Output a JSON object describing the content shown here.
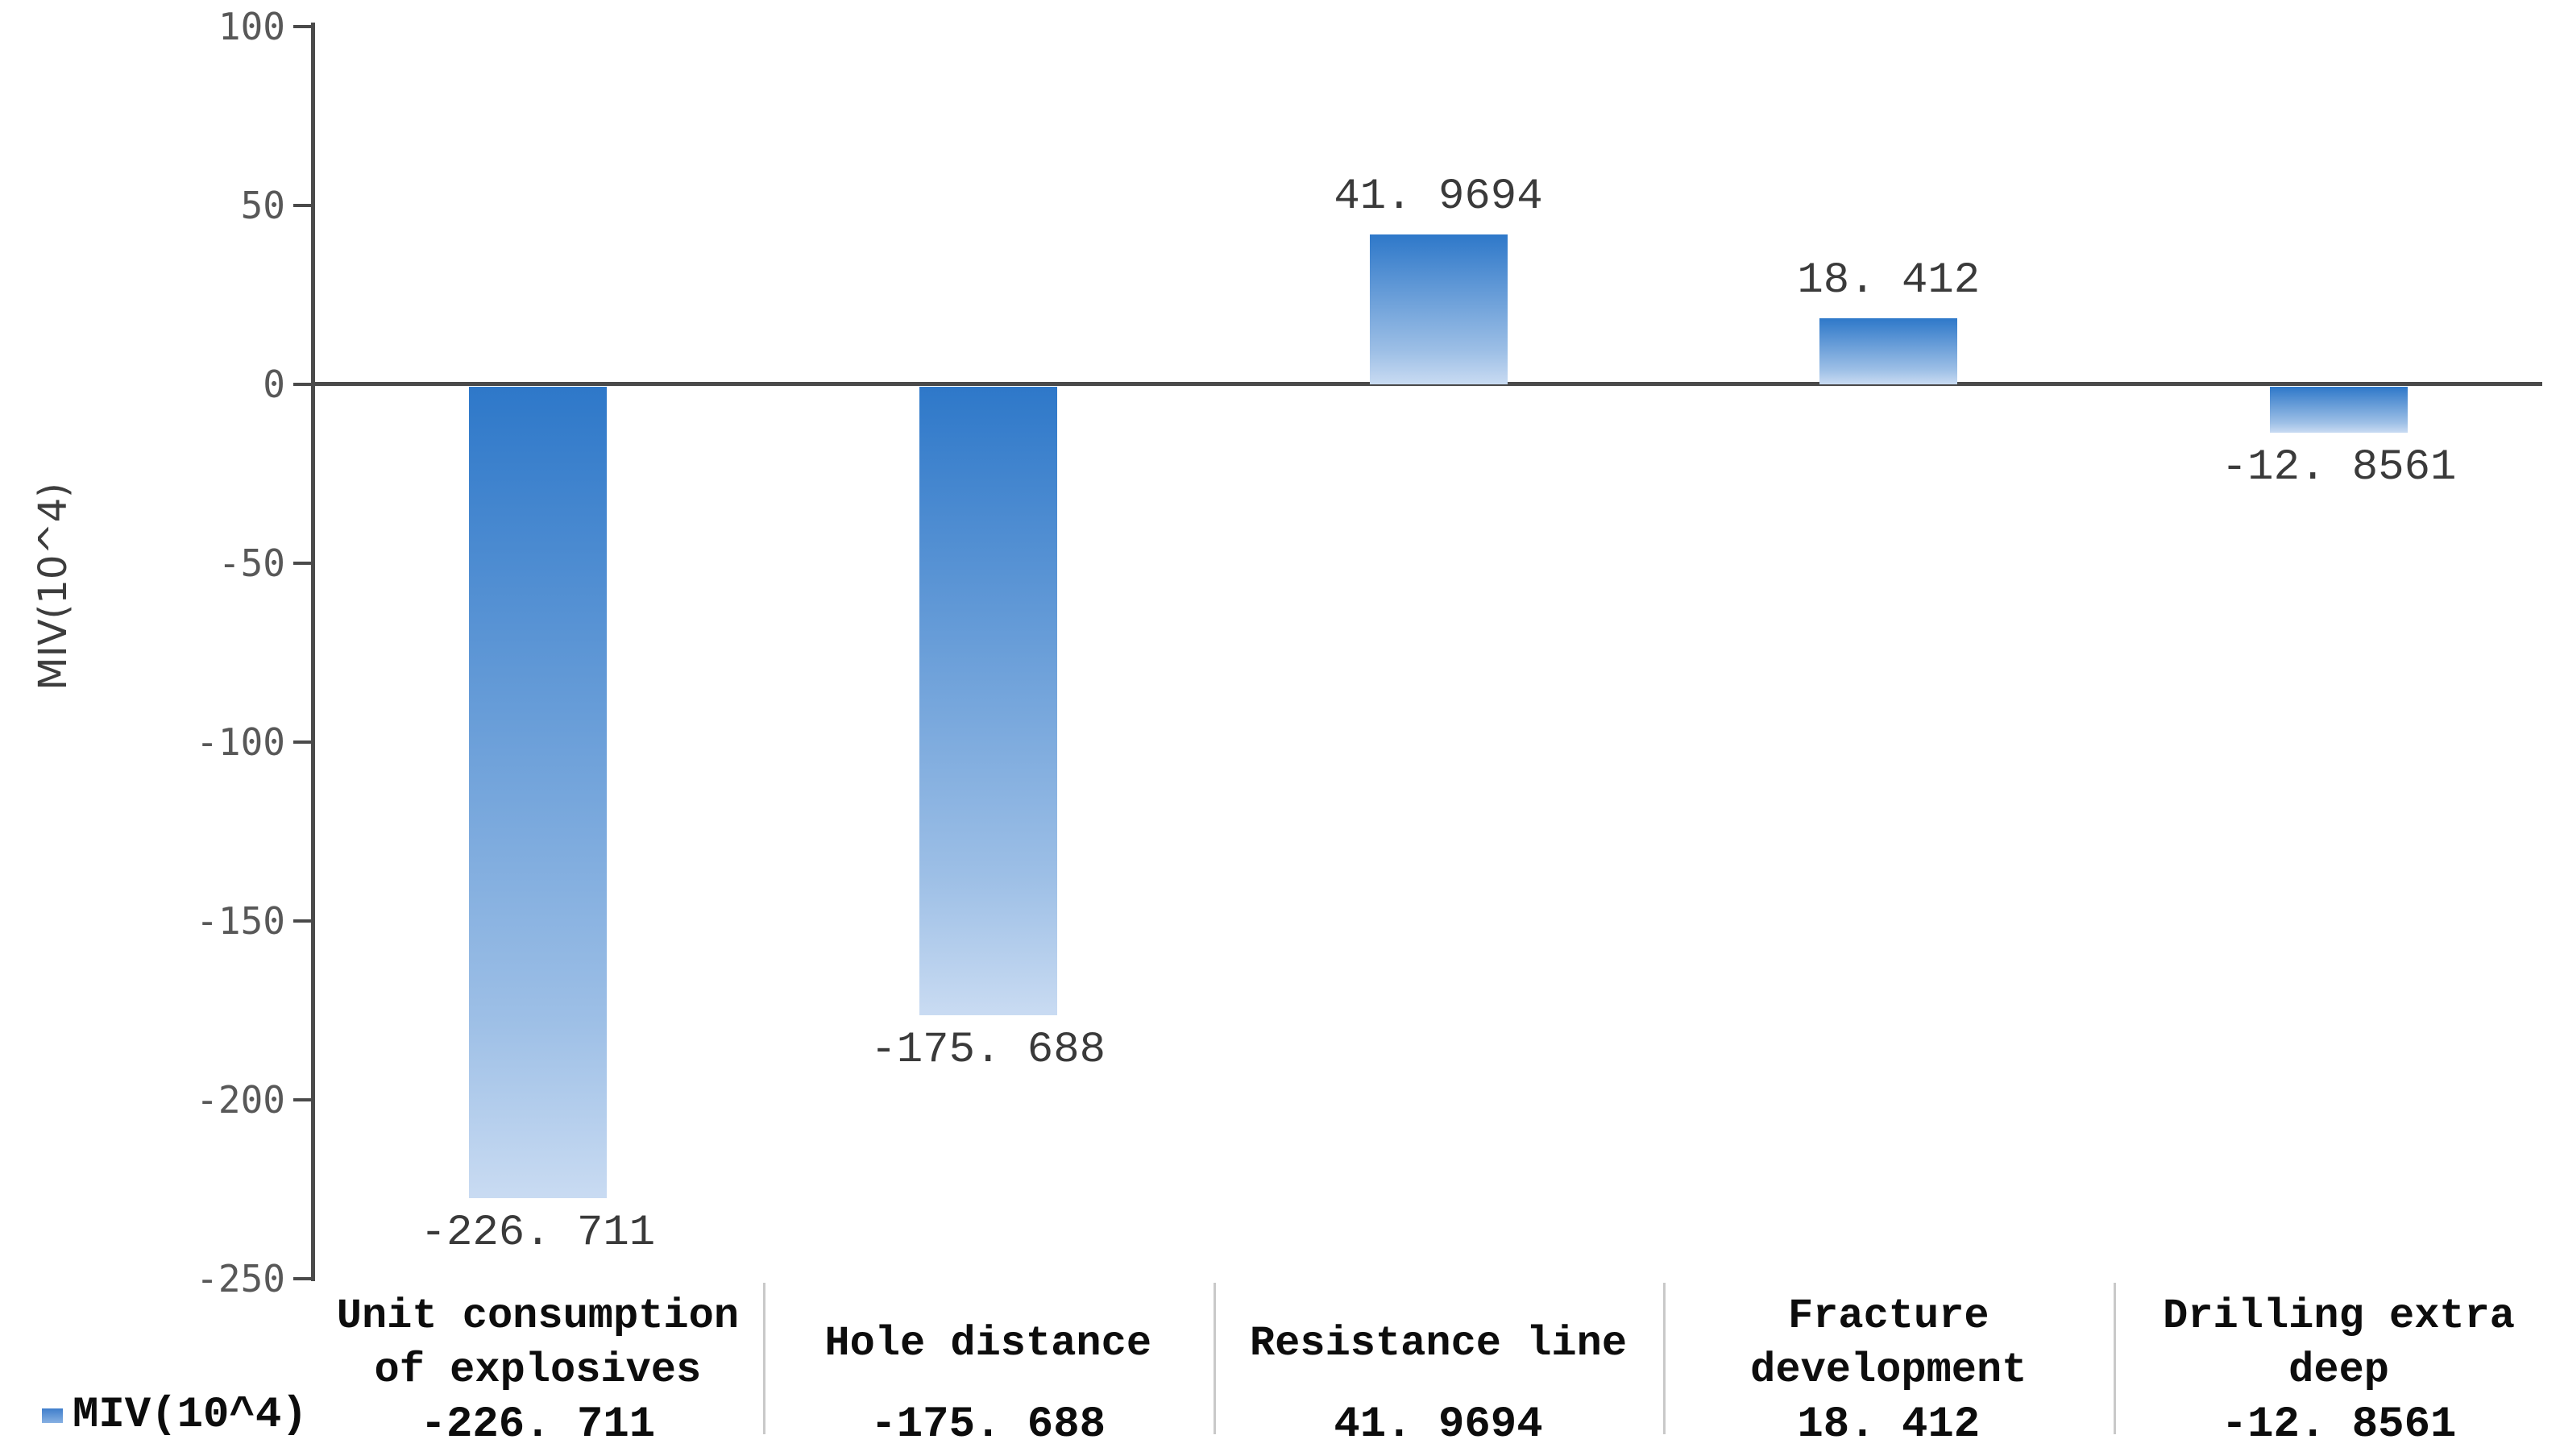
{
  "chart_data": {
    "type": "bar",
    "title": "",
    "xlabel": "",
    "ylabel": "MIV(10^4)",
    "series_name": "MIV(10^4)",
    "ylim": [
      -250,
      100
    ],
    "ytick_step": 50,
    "yticks": [
      "100",
      "50",
      "0",
      "-50",
      "-100",
      "-150",
      "-200",
      "-250"
    ],
    "grid": false,
    "legend_position": "bottom-left",
    "bar_color_top": "#2e78c9",
    "bar_color_bottom": "#c9dbf2",
    "categories": [
      {
        "name": "Unit consumption of explosives",
        "name_lines": [
          "Unit consumption",
          "of explosives"
        ],
        "value": -226.711,
        "label": "-226. 711"
      },
      {
        "name": "Hole distance",
        "name_lines": [
          "Hole distance"
        ],
        "value": -175.688,
        "label": "-175. 688"
      },
      {
        "name": "Resistance line",
        "name_lines": [
          "Resistance line"
        ],
        "value": 41.9694,
        "label": "41. 9694"
      },
      {
        "name": "Fracture development",
        "name_lines": [
          "Fracture",
          "development"
        ],
        "value": 18.412,
        "label": "18. 412"
      },
      {
        "name": "Drilling extra deep",
        "name_lines": [
          "Drilling extra",
          "deep"
        ],
        "value": -12.8561,
        "label": "-12. 8561"
      }
    ]
  },
  "y_axis": {
    "title": "MIV(10^4)"
  },
  "legend": {
    "label": "MIV(10^4)"
  }
}
